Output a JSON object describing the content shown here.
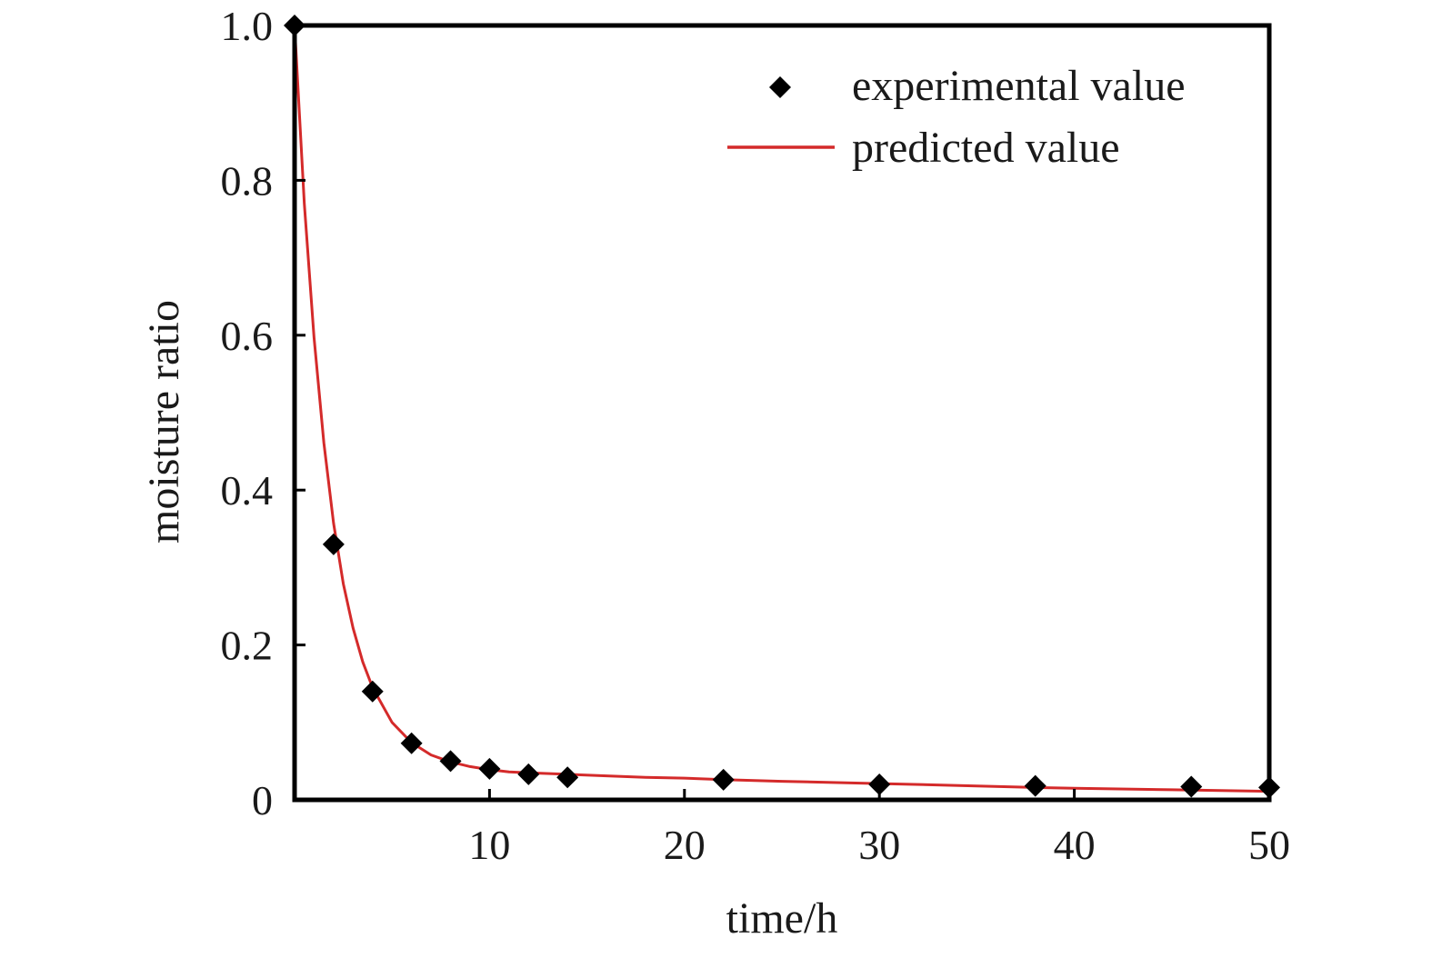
{
  "chart_data": {
    "type": "scatter",
    "title": "",
    "xlabel": "time/h",
    "ylabel": "moisture ratio",
    "xlim": [
      0,
      50
    ],
    "ylim": [
      0,
      1.0
    ],
    "x_ticks": [
      10,
      20,
      30,
      40,
      50
    ],
    "x_tick_labels": [
      "10",
      "20",
      "30",
      "40",
      "50"
    ],
    "y_ticks": [
      0,
      0.2,
      0.4,
      0.6,
      0.8,
      1.0
    ],
    "y_tick_labels": [
      "0",
      "0.2",
      "0.4",
      "0.6",
      "0.8",
      "1.0"
    ],
    "grid": false,
    "legend_position": "top-right",
    "series": [
      {
        "name": "experimental value",
        "kind": "scatter",
        "marker": "diamond",
        "color": "#000000",
        "x": [
          0,
          2,
          4,
          6,
          8,
          10,
          12,
          14,
          22,
          30,
          38,
          46,
          50
        ],
        "y": [
          1.0,
          0.33,
          0.14,
          0.073,
          0.05,
          0.04,
          0.033,
          0.029,
          0.026,
          0.02,
          0.018,
          0.017,
          0.016
        ]
      },
      {
        "name": "predicted value",
        "kind": "line",
        "color": "#d42a2a",
        "x": [
          0,
          0.5,
          1,
          1.5,
          2,
          2.5,
          3,
          3.5,
          4,
          5,
          6,
          7,
          8,
          9,
          10,
          11,
          12,
          14,
          16,
          18,
          20,
          22,
          25,
          30,
          35,
          38,
          40,
          45,
          50
        ],
        "y": [
          1.0,
          0.77,
          0.597,
          0.461,
          0.357,
          0.279,
          0.222,
          0.178,
          0.145,
          0.1,
          0.074,
          0.058,
          0.049,
          0.043,
          0.039,
          0.036,
          0.035,
          0.033,
          0.031,
          0.029,
          0.028,
          0.026,
          0.024,
          0.021,
          0.018,
          0.016,
          0.015,
          0.013,
          0.011
        ]
      }
    ]
  }
}
